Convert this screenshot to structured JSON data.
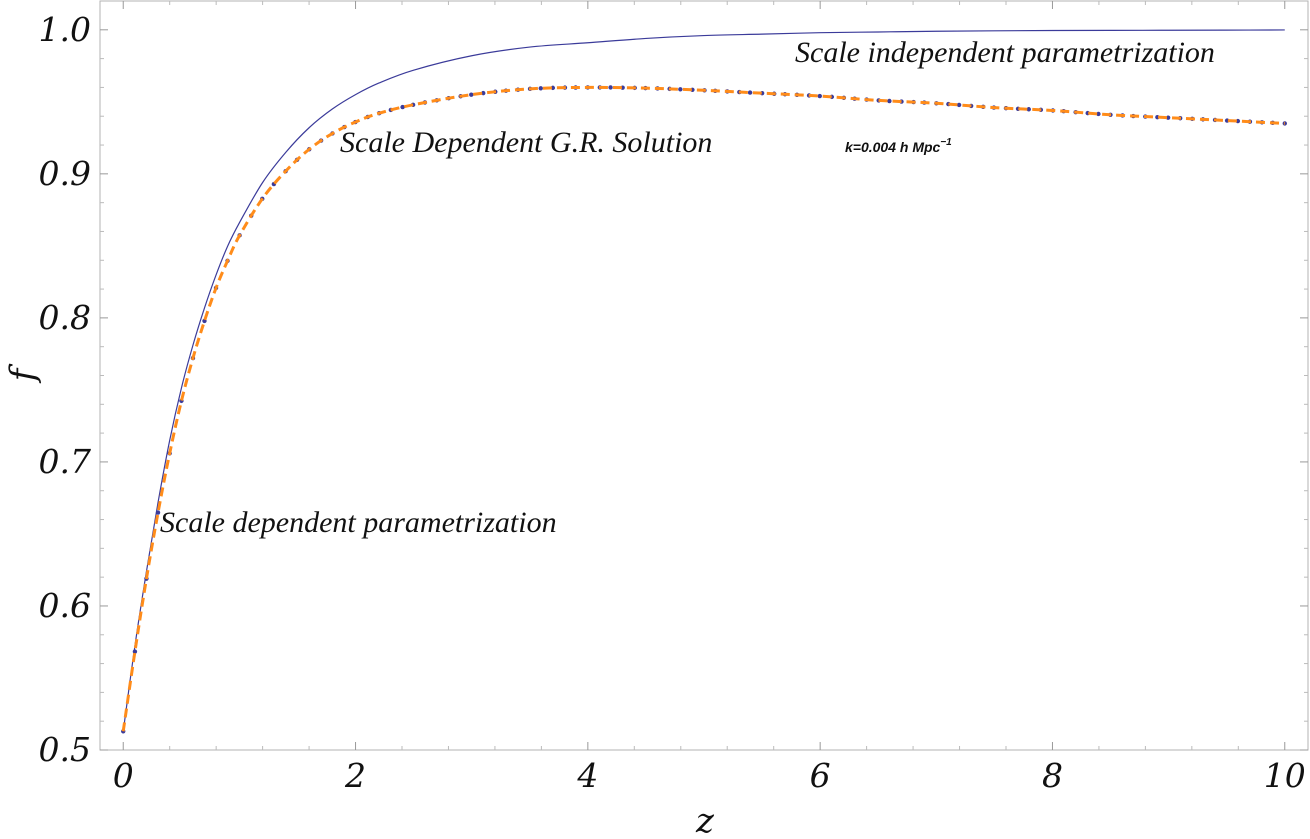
{
  "chart_data": {
    "type": "line",
    "title": "",
    "xlabel": "z",
    "ylabel": "f",
    "xlim": [
      -0.2,
      10.2
    ],
    "ylim": [
      0.5,
      1.02
    ],
    "grid": false,
    "x_ticks": [
      0,
      2,
      4,
      6,
      8,
      10
    ],
    "x_tick_labels": [
      "0",
      "2",
      "4",
      "6",
      "8",
      "10"
    ],
    "y_ticks": [
      0.5,
      0.6,
      0.7,
      0.8,
      0.9,
      1.0
    ],
    "y_tick_labels": [
      "0.5",
      "0.6",
      "0.7",
      "0.8",
      "0.9",
      "1.0"
    ],
    "colors": {
      "independent": "#3b3b9a",
      "gr_points": "#3b3b9a",
      "dependent": "#ff8c1a"
    },
    "x": [
      0,
      0.1,
      0.2,
      0.3,
      0.4,
      0.5,
      0.6,
      0.7,
      0.8,
      0.9,
      1.0,
      1.2,
      1.4,
      1.6,
      1.8,
      2.0,
      2.2,
      2.5,
      3.0,
      3.5,
      4.0,
      4.5,
      5.0,
      5.5,
      6.0,
      6.5,
      7.0,
      7.5,
      8.0,
      8.5,
      9.0,
      9.5,
      10.0
    ],
    "series": [
      {
        "values": [
          0.513,
          0.572,
          0.624,
          0.672,
          0.715,
          0.751,
          0.781,
          0.807,
          0.83,
          0.85,
          0.866,
          0.894,
          0.915,
          0.932,
          0.945,
          0.955,
          0.963,
          0.972,
          0.982,
          0.988,
          0.991,
          0.994,
          0.996,
          0.997,
          0.998,
          0.9985,
          0.999,
          0.9993,
          0.9995,
          0.9996,
          0.9997,
          0.9998,
          0.9999
        ]
      },
      {
        "values": [
          0.513,
          0.568,
          0.619,
          0.665,
          0.706,
          0.742,
          0.772,
          0.798,
          0.821,
          0.84,
          0.857,
          0.883,
          0.902,
          0.917,
          0.928,
          0.936,
          0.942,
          0.948,
          0.955,
          0.959,
          0.96,
          0.9595,
          0.958,
          0.956,
          0.954,
          0.951,
          0.949,
          0.946,
          0.944,
          0.941,
          0.939,
          0.937,
          0.935
        ]
      }
    ],
    "annotations": [
      {
        "text": "Scale independent parametrization"
      },
      {
        "text": "Scale Dependent G.R. Solution"
      },
      {
        "text": "k=0.004 h Mpc",
        "superscript": "−1"
      },
      {
        "text": "Scale dependent parametrization"
      }
    ]
  }
}
